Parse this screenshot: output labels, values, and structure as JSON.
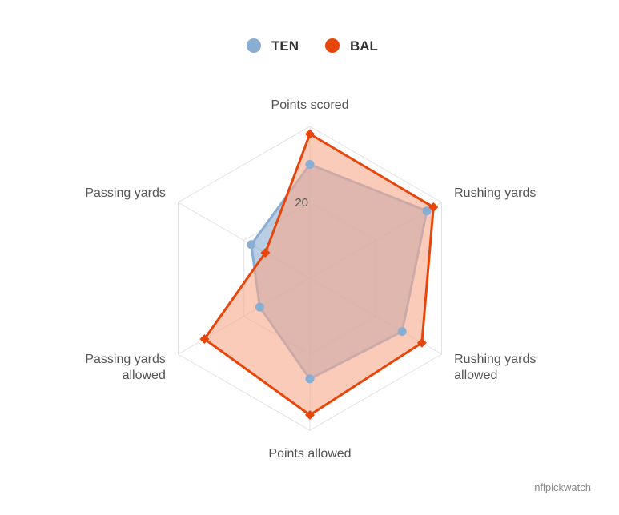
{
  "chart_data": {
    "type": "radar",
    "axes": [
      "Points scored",
      "Rushing yards",
      "Rushing yards allowed",
      "Points allowed",
      "Passing yards allowed",
      "Passing yards"
    ],
    "axis_label_lines": [
      [
        "Points scored"
      ],
      [
        "Rushing yards"
      ],
      [
        "Rushing yards",
        "allowed"
      ],
      [
        "Points allowed"
      ],
      [
        "Passing yards",
        "allowed"
      ],
      [
        "Passing yards"
      ]
    ],
    "range": [
      0,
      40
    ],
    "ticks": [
      20
    ],
    "grid_levels": [
      20,
      40
    ],
    "series": [
      {
        "name": "TEN",
        "color": "#8aadd2",
        "fill": "#8aadd2",
        "marker": "circle",
        "values": [
          30,
          35.5,
          28,
          26.5,
          15.2,
          17.8
        ]
      },
      {
        "name": "BAL",
        "color": "#e8450a",
        "fill": "#f9a88a",
        "marker": "diamond",
        "values": [
          38,
          37.5,
          34,
          36,
          32,
          13.5
        ]
      }
    ],
    "legend": {
      "placement": "top-center",
      "items": [
        "TEN",
        "BAL"
      ]
    },
    "credit": "nflpickwatch"
  }
}
